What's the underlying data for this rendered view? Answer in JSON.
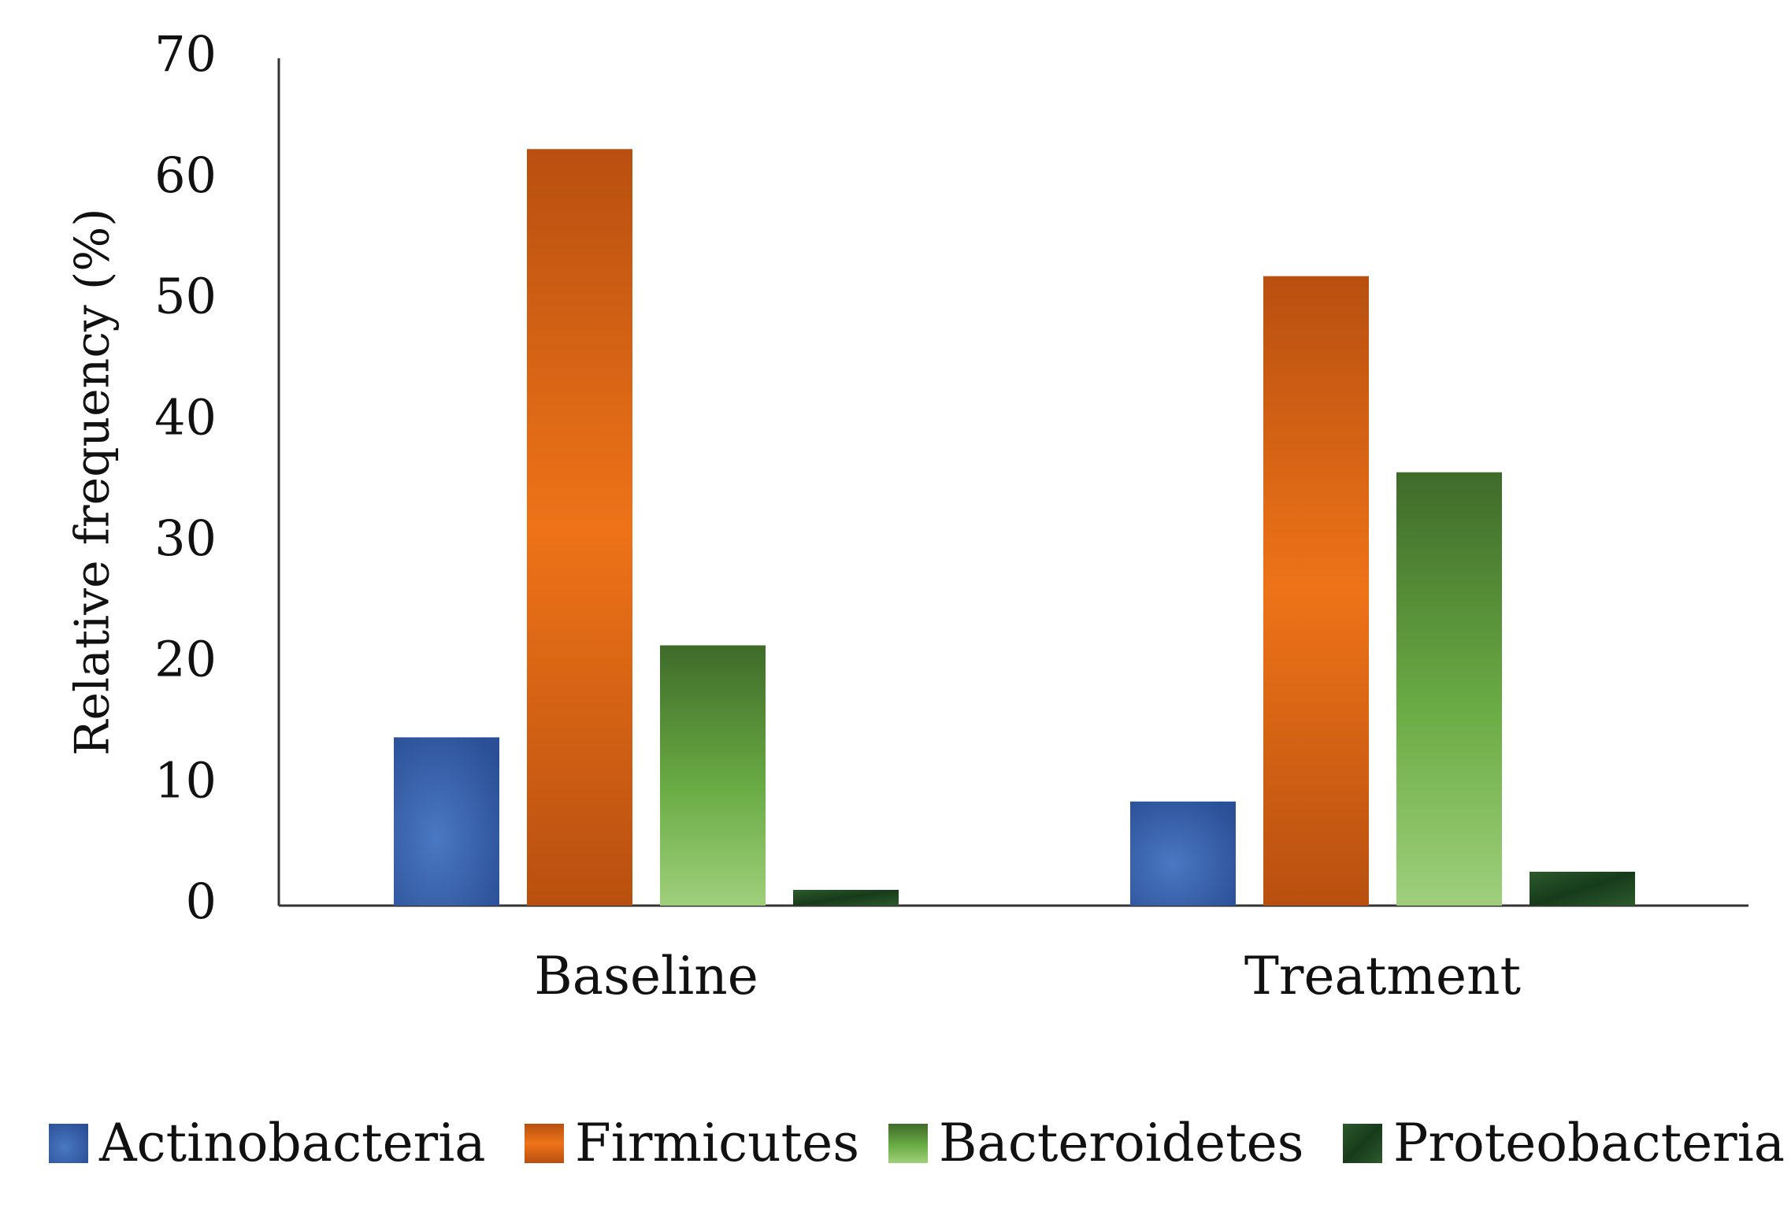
{
  "chart_data": {
    "type": "bar",
    "title": "",
    "xlabel": "",
    "ylabel": "Relative frequency (%)",
    "ylim": [
      0,
      70
    ],
    "yticks": [
      0,
      10,
      20,
      30,
      40,
      50,
      60,
      70
    ],
    "grid": false,
    "legend_position": "bottom",
    "categories": [
      "Baseline",
      "Treatment"
    ],
    "series": [
      {
        "name": "Actinobacteria",
        "values": [
          13.9,
          8.6
        ]
      },
      {
        "name": "Firmicutes",
        "values": [
          62.5,
          52.0
        ]
      },
      {
        "name": "Bacteroidetes",
        "values": [
          21.5,
          35.8
        ]
      },
      {
        "name": "Proteobacteria",
        "values": [
          1.3,
          2.8
        ]
      }
    ],
    "colors": {
      "Actinobacteria": {
        "light": "#4a78c2",
        "dark": "#2a4f96"
      },
      "Firmicutes": {
        "light": "#ee7318",
        "dark": "#b85010"
      },
      "Bacteroidetes": {
        "top": "#3f6b2a",
        "mid": "#6aac44",
        "bottom": "#9fcf7c"
      },
      "Proteobacteria": {
        "light": "#2c5a2c",
        "dark": "#173b1a"
      }
    }
  }
}
